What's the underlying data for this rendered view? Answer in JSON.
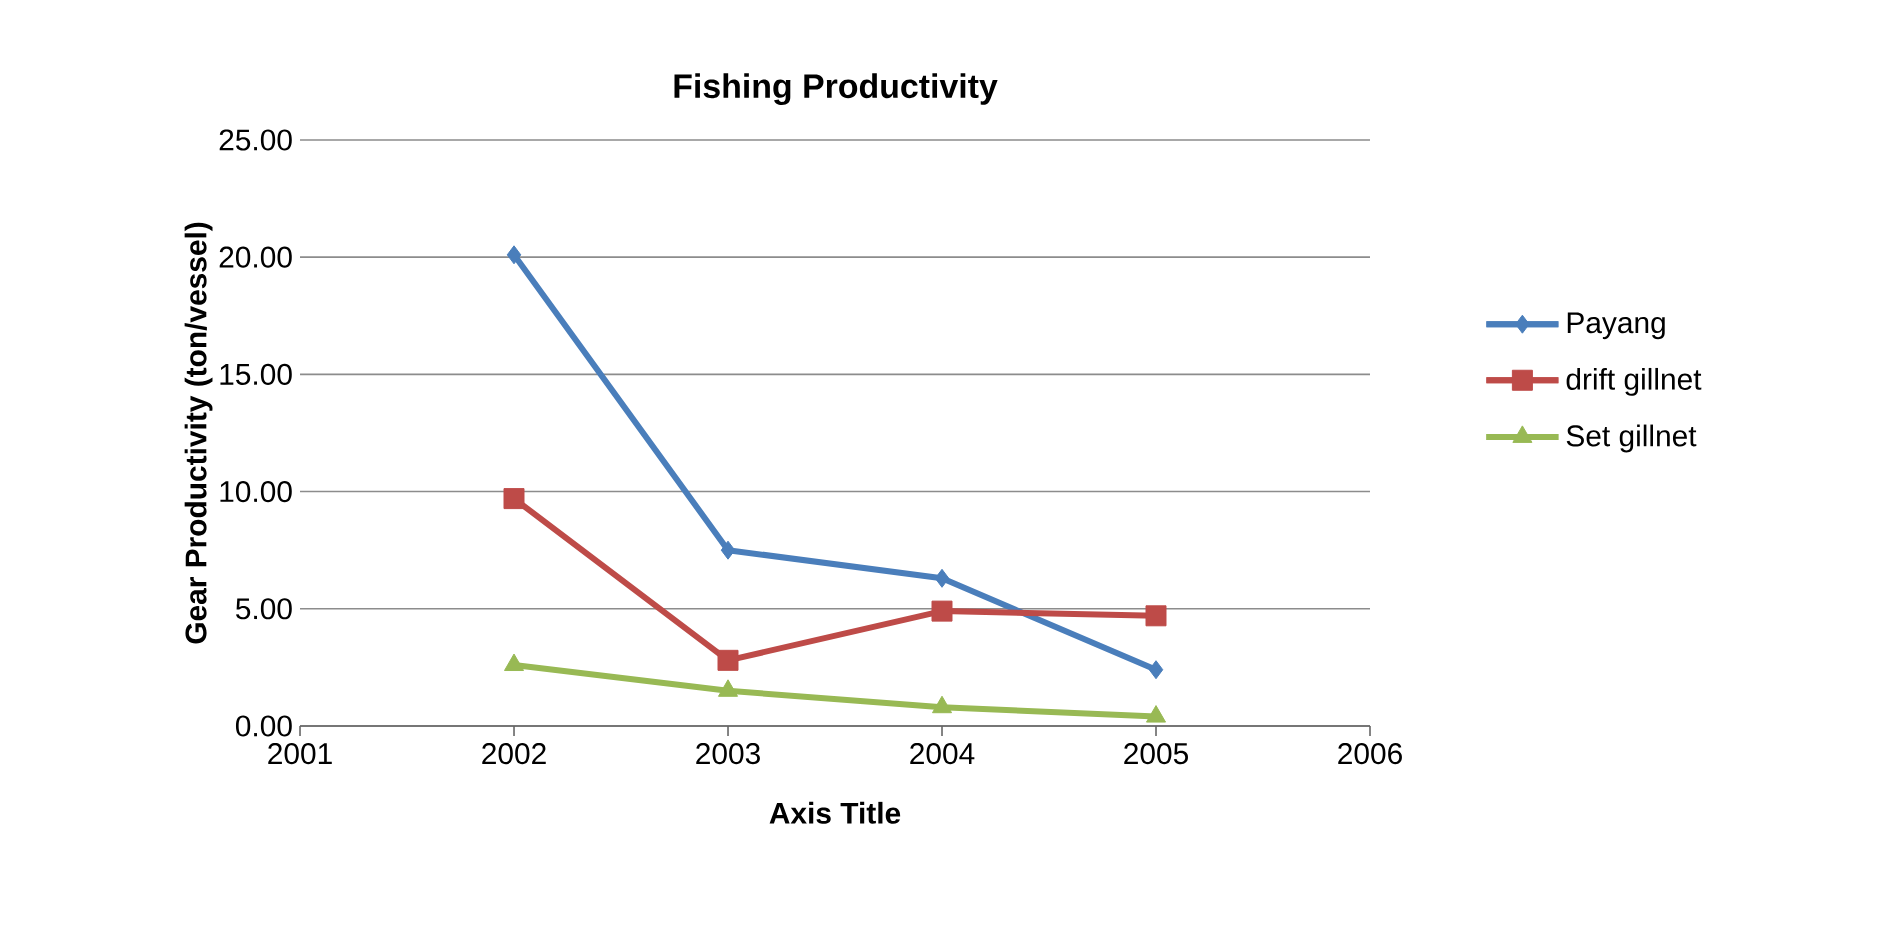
{
  "chart_data": {
    "type": "line",
    "title": "Fishing Productivity",
    "xlabel": "Axis Title",
    "ylabel": "Gear Productivity (ton/vessel)",
    "x": [
      2002,
      2003,
      2004,
      2005
    ],
    "series": [
      {
        "name": "Payang",
        "color": "#4a7ebb",
        "marker": "diamond",
        "values": [
          20.1,
          7.5,
          6.3,
          2.4
        ]
      },
      {
        "name": "drift gillnet",
        "color": "#be4b48",
        "marker": "square",
        "values": [
          9.7,
          2.8,
          4.9,
          4.7
        ]
      },
      {
        "name": "Set gillnet",
        "color": "#98b954",
        "marker": "triangle",
        "values": [
          2.6,
          1.5,
          0.8,
          0.4
        ]
      }
    ],
    "xlim": [
      2001,
      2006
    ],
    "xticks": [
      2001,
      2002,
      2003,
      2004,
      2005,
      2006
    ],
    "ylim": [
      0,
      25
    ],
    "yticks": [
      {
        "value": 0,
        "label": "0.00"
      },
      {
        "value": 5,
        "label": "5.00"
      },
      {
        "value": 10,
        "label": "10.00"
      },
      {
        "value": 15,
        "label": "15.00"
      },
      {
        "value": 20,
        "label": "20.00"
      },
      {
        "value": 25,
        "label": "25.00"
      }
    ],
    "grid": "y",
    "legend": "right"
  }
}
